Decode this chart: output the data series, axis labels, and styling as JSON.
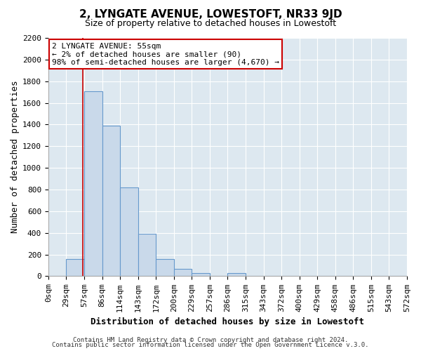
{
  "title": "2, LYNGATE AVENUE, LOWESTOFT, NR33 9JD",
  "subtitle": "Size of property relative to detached houses in Lowestoft",
  "xlabel": "Distribution of detached houses by size in Lowestoft",
  "ylabel": "Number of detached properties",
  "bar_labels": [
    "0sqm",
    "29sqm",
    "57sqm",
    "86sqm",
    "114sqm",
    "143sqm",
    "172sqm",
    "200sqm",
    "229sqm",
    "257sqm",
    "286sqm",
    "315sqm",
    "343sqm",
    "372sqm",
    "400sqm",
    "429sqm",
    "458sqm",
    "486sqm",
    "515sqm",
    "543sqm",
    "572sqm"
  ],
  "bar_values": [
    0,
    155,
    1710,
    1390,
    820,
    390,
    160,
    65,
    30,
    0,
    30,
    0,
    0,
    0,
    0,
    0,
    0,
    0,
    0,
    0,
    0
  ],
  "bar_color": "#c9d9ea",
  "bar_edge_color": "#6699cc",
  "ylim": [
    0,
    2200
  ],
  "yticks": [
    0,
    200,
    400,
    600,
    800,
    1000,
    1200,
    1400,
    1600,
    1800,
    2000,
    2200
  ],
  "property_line_x": 1.93,
  "annotation_title": "2 LYNGATE AVENUE: 55sqm",
  "annotation_line1": "← 2% of detached houses are smaller (90)",
  "annotation_line2": "98% of semi-detached houses are larger (4,670) →",
  "annotation_box_facecolor": "#ffffff",
  "annotation_box_edgecolor": "#cc0000",
  "property_line_color": "#cc0000",
  "footer1": "Contains HM Land Registry data © Crown copyright and database right 2024.",
  "footer2": "Contains public sector information licensed under the Open Government Licence v.3.0.",
  "bg_color": "#ffffff",
  "plot_bg_color": "#dde8f0",
  "grid_color": "#ffffff",
  "title_fontsize": 11,
  "subtitle_fontsize": 9,
  "axis_label_fontsize": 9,
  "tick_fontsize": 8,
  "annotation_fontsize": 8,
  "footer_fontsize": 6.5
}
